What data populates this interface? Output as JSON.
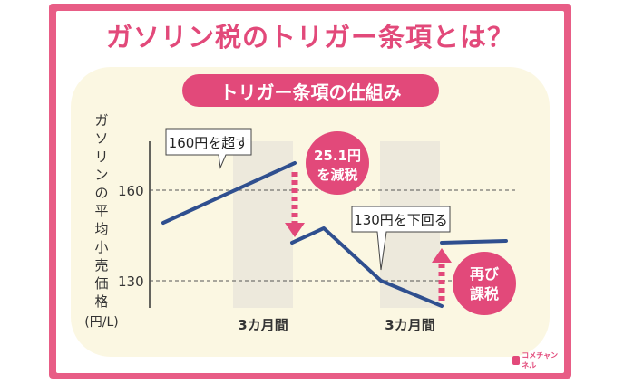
{
  "title": "ガソリン税のトリガー条項とは？",
  "subtitle": "トリガー条項の仕組み",
  "y_axis_label_chars": [
    "ガ",
    "ソ",
    "リ",
    "ン",
    "の",
    "平",
    "均",
    "小",
    "売",
    "価",
    "格"
  ],
  "y_axis_unit": "(円/L)",
  "y_ticks": [
    "160",
    "130"
  ],
  "period_labels": [
    "3カ月間",
    "3カ月間"
  ],
  "callouts": {
    "exceed": "160円を超す",
    "below": "130円を下回る",
    "reduce_line1": "25.1円",
    "reduce_line2": "を減税",
    "retax_line1": "再び",
    "retax_line2": "課税"
  },
  "logo_text": "コメチャンネル",
  "colors": {
    "accent": "#e2497a",
    "line": "#2f4f8f",
    "panel": "#fbf7e2",
    "band": "#ede9dc"
  }
}
